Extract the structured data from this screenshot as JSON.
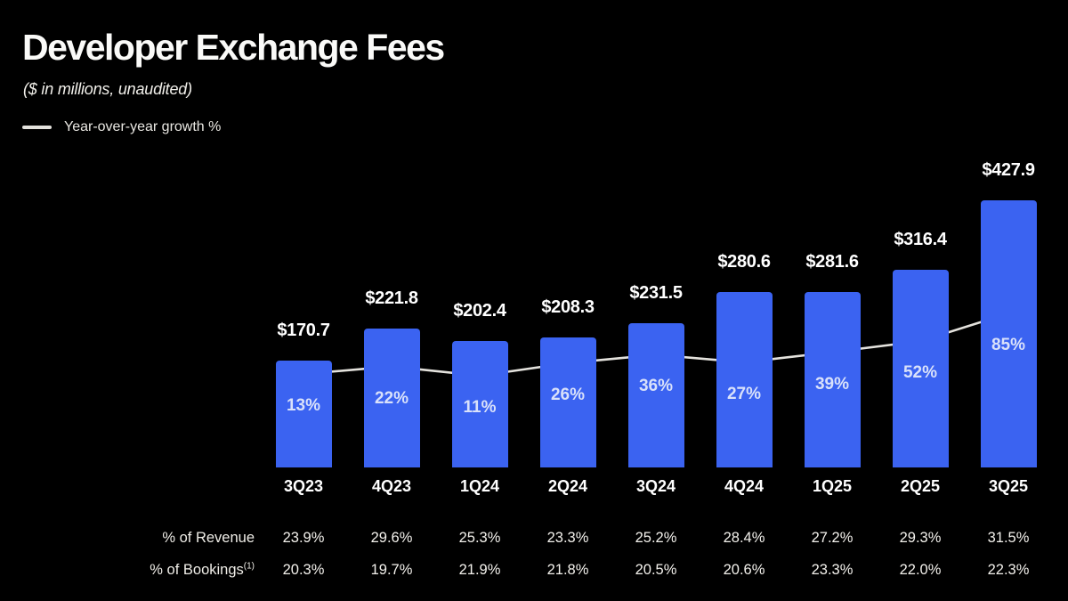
{
  "header": {
    "title": "Developer Exchange Fees",
    "subtitle": "($ in millions, unaudited)",
    "legend": {
      "label": "Year-over-year growth %"
    }
  },
  "colors": {
    "background": "#000000",
    "bar": "#3B63F1",
    "line": "#E4E2DD",
    "growth_label": "#D9E1FA",
    "value_label": "#FFFFFF",
    "table_text": "#EFEDE7"
  },
  "chart_data": {
    "type": "bar",
    "title": "Developer Exchange Fees",
    "subtitle": "($ in millions, unaudited)",
    "categories": [
      "3Q23",
      "4Q23",
      "1Q24",
      "2Q24",
      "3Q24",
      "4Q24",
      "1Q25",
      "2Q25",
      "3Q25"
    ],
    "series": [
      {
        "name": "Developer Exchange Fees",
        "type": "bar",
        "unit": "$ in millions",
        "values": [
          170.7,
          221.8,
          202.4,
          208.3,
          231.5,
          280.6,
          281.6,
          316.4,
          427.9
        ],
        "labels": [
          "$170.7",
          "$221.8",
          "$202.4",
          "$208.3",
          "$231.5",
          "$280.6",
          "$281.6",
          "$316.4",
          "$427.9"
        ]
      },
      {
        "name": "Year-over-year growth %",
        "type": "line",
        "unit": "%",
        "values": [
          13,
          22,
          11,
          26,
          36,
          27,
          39,
          52,
          85
        ],
        "labels": [
          "13%",
          "22%",
          "11%",
          "26%",
          "36%",
          "27%",
          "39%",
          "52%",
          "85%"
        ]
      }
    ],
    "xlabel": "",
    "ylabel": "",
    "ylim": [
      0,
      450
    ],
    "grid": false,
    "legend_position": "top-left",
    "value_labels_shown": true
  },
  "table": {
    "rows": [
      {
        "label": "% of Revenue",
        "footnote": "",
        "values": [
          "23.9%",
          "29.6%",
          "25.3%",
          "23.3%",
          "25.2%",
          "28.4%",
          "27.2%",
          "29.3%",
          "31.5%"
        ]
      },
      {
        "label": "% of Bookings",
        "footnote": "(1)",
        "values": [
          "20.3%",
          "19.7%",
          "21.9%",
          "21.8%",
          "20.5%",
          "20.6%",
          "23.3%",
          "22.0%",
          "22.3%"
        ]
      }
    ]
  }
}
